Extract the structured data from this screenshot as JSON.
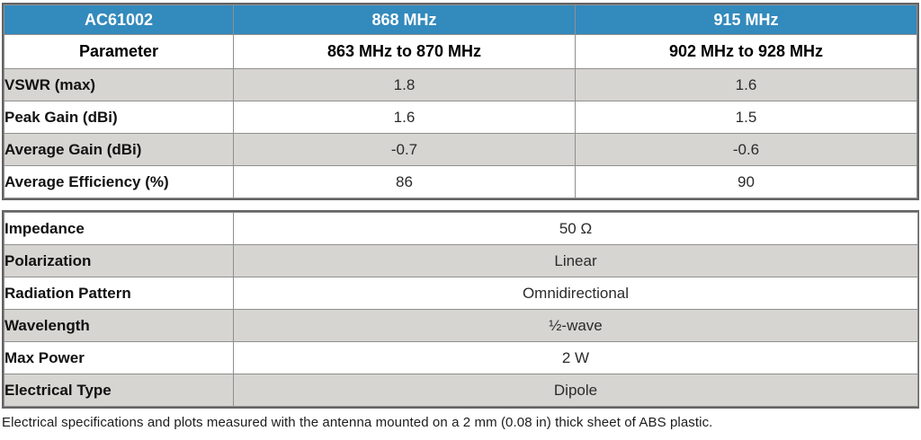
{
  "colors": {
    "header_blue": "#338ABD",
    "row_gray": "#D7D5D2",
    "outer_border": "#636363",
    "inner_border": "#8f8f8f"
  },
  "table1": {
    "header": {
      "model": "AC61002",
      "band868": "868 MHz",
      "band915": "915 MHz"
    },
    "subheader": {
      "label": "Parameter",
      "range868": "863 MHz to 870 MHz",
      "range915": "902 MHz to 928 MHz"
    },
    "rows": [
      {
        "label": "VSWR (max)",
        "v868": "1.8",
        "v915": "1.6"
      },
      {
        "label": "Peak Gain (dBi)",
        "v868": "1.6",
        "v915": "1.5"
      },
      {
        "label": "Average Gain (dBi)",
        "v868": "-0.7",
        "v915": "-0.6"
      },
      {
        "label": "Average Efficiency (%)",
        "v868": "86",
        "v915": "90"
      }
    ]
  },
  "table2": {
    "rows": [
      {
        "label": "Impedance",
        "value": "50 Ω"
      },
      {
        "label": "Polarization",
        "value": "Linear"
      },
      {
        "label": "Radiation Pattern",
        "value": "Omnidirectional"
      },
      {
        "label": "Wavelength",
        "value": "½-wave"
      },
      {
        "label": "Max Power",
        "value": "2 W"
      },
      {
        "label": "Electrical Type",
        "value": "Dipole"
      }
    ]
  },
  "footnote": "Electrical specifications and plots measured with the antenna mounted on a 2 mm (0.08 in) thick sheet of ABS plastic."
}
